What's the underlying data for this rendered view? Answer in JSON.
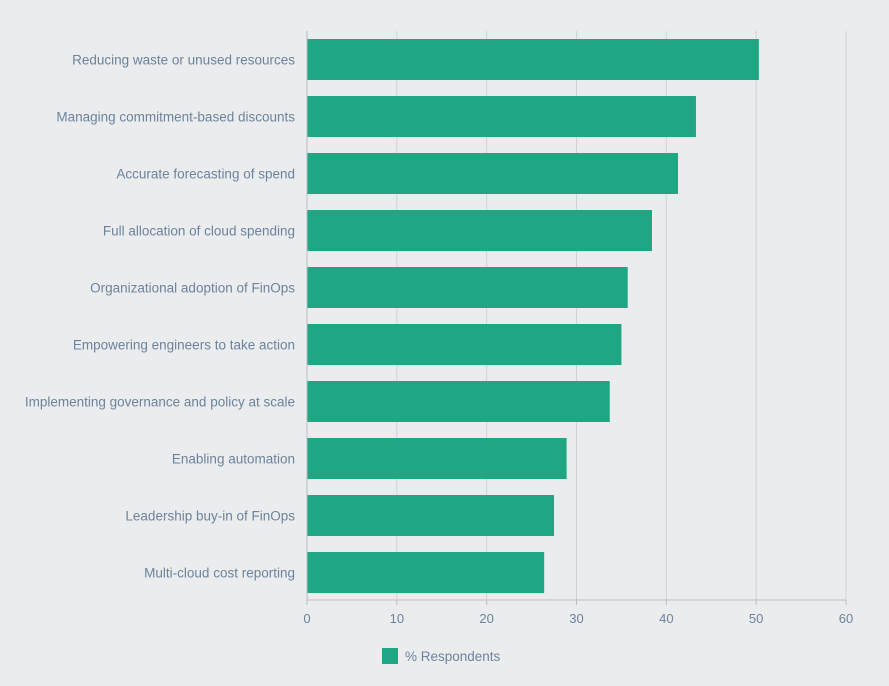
{
  "chart_data": {
    "type": "bar",
    "orientation": "horizontal",
    "title": "",
    "xlabel": "",
    "ylabel": "",
    "categories": [
      "Reducing waste or unused resources",
      "Managing commitment-based discounts",
      "Accurate forecasting of spend",
      "Full allocation of cloud spending",
      "Organizational adoption of FinOps",
      "Empowering engineers to take action",
      "Implementing governance and policy at scale",
      "Enabling automation",
      "Leadership buy-in of FinOps",
      "Multi-cloud cost reporting"
    ],
    "series": [
      {
        "name": "% Respondents",
        "values": [
          50.3,
          43.3,
          41.3,
          38.4,
          35.7,
          35.0,
          33.7,
          28.9,
          27.5,
          26.4
        ],
        "color": "#20a683"
      }
    ],
    "xlim": [
      0,
      60
    ],
    "xticks": [
      "0",
      "10",
      "20",
      "30",
      "40",
      "50",
      "60"
    ],
    "grid": true,
    "legend_position": "bottom-center"
  },
  "colors": {
    "background": "#eaecee",
    "bar": "#20a683",
    "grid": "#cfd3d8",
    "axis": "#b8bec6",
    "label_text": "#6d839c"
  }
}
